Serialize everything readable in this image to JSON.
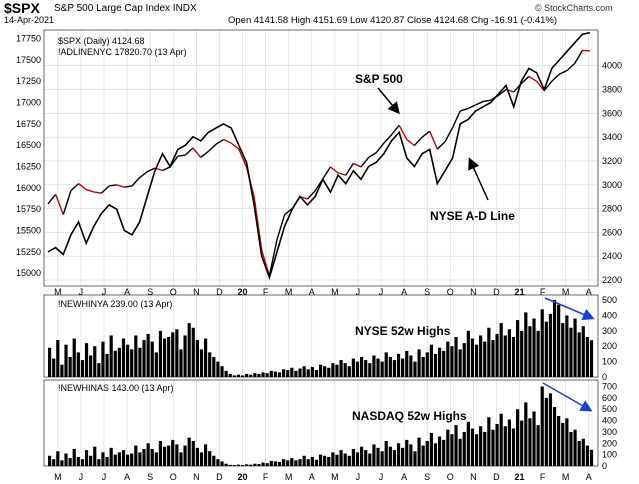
{
  "header": {
    "ticker": "$SPX",
    "index_name": "S&P 500 Large Cap Index",
    "exchange": "INDX",
    "date": "14-Apr-2021",
    "ohlc_text": "Open 4141.58  High 4151.69  Low 4120.87  Close 4124.68  Chg -16.91 (-0.41%)",
    "brand": "© StockCharts.com"
  },
  "legend": {
    "spx": "$SPX (Daily) 4124.68",
    "adline": "!ADLINENYC 17820.70 (13 Apr)",
    "highs_nyse": "!NEWHINYA 239.00 (13 Apr)",
    "highs_nasdaq": "!NEWHINAS 143.00 (13 Apr)"
  },
  "annotations": {
    "spx": "S&P 500",
    "adline": "NYSE A-D Line",
    "nyse_highs": "NYSE 52w Highs",
    "nasdaq_highs": "NASDAQ 52w Highs"
  },
  "colors": {
    "spx_up": "#000000",
    "spx_down": "#cc0000",
    "adline": "#000000",
    "bars": "#000000",
    "arrow": "#1a3fd6",
    "grid": "#d8d8d8"
  },
  "x_axis": {
    "labels": [
      "M",
      "J",
      "J",
      "A",
      "S",
      "O",
      "N",
      "D",
      "20",
      "F",
      "M",
      "A",
      "M",
      "J",
      "J",
      "A",
      "S",
      "O",
      "N",
      "D",
      "21",
      "F",
      "M",
      "A"
    ]
  },
  "chart_data": [
    {
      "type": "line",
      "name": "price-panel",
      "series": [
        {
          "name": "$SPX (Daily) 4124.68",
          "axis": "right",
          "points": [
            [
              0,
              2840
            ],
            [
              1,
              2920
            ],
            [
              2,
              2750
            ],
            [
              3,
              2950
            ],
            [
              4,
              3010
            ],
            [
              5,
              2960
            ],
            [
              6,
              2940
            ],
            [
              7,
              2930
            ],
            [
              8,
              2990
            ],
            [
              9,
              3000
            ],
            [
              10,
              2980
            ],
            [
              11,
              2990
            ],
            [
              12,
              3060
            ],
            [
              13,
              3110
            ],
            [
              14,
              3140
            ],
            [
              15,
              3120
            ],
            [
              16,
              3150
            ],
            [
              17,
              3240
            ],
            [
              18,
              3250
            ],
            [
              19,
              3310
            ],
            [
              20,
              3230
            ],
            [
              21,
              3280
            ],
            [
              22,
              3340
            ],
            [
              23,
              3380
            ],
            [
              24,
              3350
            ],
            [
              25,
              3300
            ],
            [
              26,
              3150
            ],
            [
              27,
              2900
            ],
            [
              28,
              2450
            ],
            [
              29,
              2237
            ],
            [
              30,
              2540
            ],
            [
              31,
              2750
            ],
            [
              32,
              2800
            ],
            [
              33,
              2900
            ],
            [
              34,
              2880
            ],
            [
              35,
              2950
            ],
            [
              36,
              3050
            ],
            [
              37,
              3150
            ],
            [
              38,
              3100
            ],
            [
              39,
              3080
            ],
            [
              40,
              3180
            ],
            [
              41,
              3150
            ],
            [
              42,
              3230
            ],
            [
              43,
              3270
            ],
            [
              44,
              3350
            ],
            [
              45,
              3420
            ],
            [
              46,
              3500
            ],
            [
              47,
              3380
            ],
            [
              48,
              3330
            ],
            [
              49,
              3400
            ],
            [
              50,
              3450
            ],
            [
              51,
              3300
            ],
            [
              52,
              3360
            ],
            [
              53,
              3480
            ],
            [
              54,
              3620
            ],
            [
              55,
              3640
            ],
            [
              56,
              3670
            ],
            [
              57,
              3700
            ],
            [
              58,
              3710
            ],
            [
              59,
              3750
            ],
            [
              60,
              3800
            ],
            [
              61,
              3780
            ],
            [
              62,
              3850
            ],
            [
              63,
              3910
            ],
            [
              64,
              3870
            ],
            [
              65,
              3790
            ],
            [
              66,
              3870
            ],
            [
              67,
              3930
            ],
            [
              68,
              3960
            ],
            [
              69,
              4020
            ],
            [
              70,
              4128
            ],
            [
              71,
              4125
            ]
          ]
        },
        {
          "name": "!ADLINENYC 17820.70 (13 Apr)",
          "axis": "left",
          "points": [
            [
              0,
              15250
            ],
            [
              1,
              15300
            ],
            [
              2,
              15220
            ],
            [
              3,
              15450
            ],
            [
              4,
              15600
            ],
            [
              5,
              15350
            ],
            [
              6,
              15550
            ],
            [
              7,
              15700
            ],
            [
              8,
              15800
            ],
            [
              9,
              15750
            ],
            [
              10,
              15500
            ],
            [
              11,
              15450
            ],
            [
              12,
              15600
            ],
            [
              13,
              15900
            ],
            [
              14,
              16200
            ],
            [
              15,
              16400
            ],
            [
              16,
              16250
            ],
            [
              17,
              16450
            ],
            [
              18,
              16500
            ],
            [
              19,
              16600
            ],
            [
              20,
              16550
            ],
            [
              21,
              16650
            ],
            [
              22,
              16700
            ],
            [
              23,
              16750
            ],
            [
              24,
              16700
            ],
            [
              25,
              16500
            ],
            [
              26,
              16300
            ],
            [
              27,
              15800
            ],
            [
              28,
              15200
            ],
            [
              29,
              14950
            ],
            [
              30,
              15250
            ],
            [
              31,
              15550
            ],
            [
              32,
              15750
            ],
            [
              33,
              15900
            ],
            [
              34,
              15800
            ],
            [
              35,
              15900
            ],
            [
              36,
              16100
            ],
            [
              37,
              15950
            ],
            [
              38,
              16150
            ],
            [
              39,
              16050
            ],
            [
              40,
              16200
            ],
            [
              41,
              16100
            ],
            [
              42,
              16250
            ],
            [
              43,
              16300
            ],
            [
              44,
              16400
            ],
            [
              45,
              16550
            ],
            [
              46,
              16650
            ],
            [
              47,
              16350
            ],
            [
              48,
              16250
            ],
            [
              49,
              16400
            ],
            [
              50,
              16450
            ],
            [
              51,
              16050
            ],
            [
              52,
              16200
            ],
            [
              53,
              16350
            ],
            [
              54,
              16750
            ],
            [
              55,
              16800
            ],
            [
              56,
              16900
            ],
            [
              57,
              16950
            ],
            [
              58,
              17000
            ],
            [
              59,
              17100
            ],
            [
              60,
              17200
            ],
            [
              61,
              16950
            ],
            [
              62,
              17250
            ],
            [
              63,
              17400
            ],
            [
              64,
              17350
            ],
            [
              65,
              17150
            ],
            [
              66,
              17400
            ],
            [
              67,
              17500
            ],
            [
              68,
              17600
            ],
            [
              69,
              17700
            ],
            [
              70,
              17800
            ],
            [
              71,
              17820
            ]
          ]
        }
      ],
      "y_right": {
        "min": 2150,
        "max": 4300,
        "ticks": [
          2200,
          2400,
          2600,
          2800,
          3000,
          3200,
          3400,
          3600,
          3800,
          4000
        ]
      },
      "y_left": {
        "min": 14850,
        "max": 17850,
        "ticks": [
          15000,
          15250,
          15500,
          15750,
          16000,
          16250,
          16500,
          16750,
          17000,
          17250,
          17500,
          17750
        ]
      }
    },
    {
      "type": "bar",
      "name": "!NEWHINYA 239.00 (13 Apr)",
      "ylim": [
        0,
        520
      ],
      "yticks": [
        0,
        100,
        200,
        300,
        400,
        500
      ],
      "values": [
        190,
        120,
        240,
        80,
        210,
        130,
        250,
        160,
        110,
        220,
        140,
        200,
        90,
        230,
        150,
        270,
        170,
        190,
        250,
        210,
        180,
        270,
        190,
        240,
        280,
        230,
        160,
        300,
        250,
        260,
        290,
        310,
        180,
        270,
        350,
        320,
        240,
        180,
        250,
        160,
        130,
        100,
        70,
        40,
        20,
        10,
        15,
        10,
        20,
        15,
        25,
        20,
        30,
        25,
        40,
        35,
        30,
        50,
        45,
        60,
        40,
        55,
        70,
        50,
        65,
        45,
        80,
        70,
        60,
        90,
        80,
        110,
        90,
        70,
        120,
        100,
        130,
        110,
        90,
        140,
        120,
        100,
        160,
        130,
        110,
        150,
        120,
        170,
        140,
        100,
        180,
        130,
        160,
        210,
        150,
        190,
        170,
        230,
        200,
        260,
        180,
        220,
        300,
        250,
        210,
        270,
        230,
        320,
        240,
        280,
        350,
        270,
        310,
        260,
        370,
        300,
        420,
        330,
        380,
        300,
        440,
        360,
        410,
        500,
        470,
        350,
        400,
        320,
        380,
        290,
        330,
        260,
        239
      ]
    },
    {
      "type": "bar",
      "name": "!NEWHINAS 143.00 (13 Apr)",
      "ylim": [
        0,
        740
      ],
      "yticks": [
        0,
        100,
        200,
        300,
        400,
        500,
        600,
        700
      ],
      "values": [
        90,
        60,
        130,
        50,
        110,
        70,
        150,
        80,
        60,
        140,
        90,
        170,
        60,
        120,
        80,
        160,
        100,
        120,
        140,
        100,
        110,
        180,
        120,
        150,
        200,
        150,
        120,
        220,
        170,
        180,
        230,
        190,
        120,
        180,
        250,
        220,
        160,
        120,
        190,
        130,
        90,
        60,
        40,
        20,
        10,
        8,
        12,
        8,
        15,
        12,
        20,
        18,
        30,
        25,
        45,
        40,
        35,
        60,
        50,
        70,
        50,
        60,
        90,
        60,
        80,
        55,
        100,
        90,
        80,
        120,
        100,
        140,
        110,
        90,
        150,
        120,
        170,
        140,
        110,
        190,
        160,
        130,
        220,
        170,
        140,
        200,
        160,
        230,
        190,
        130,
        250,
        180,
        220,
        290,
        200,
        260,
        230,
        320,
        280,
        360,
        240,
        300,
        390,
        330,
        280,
        350,
        300,
        430,
        320,
        370,
        460,
        350,
        410,
        330,
        500,
        400,
        560,
        420,
        480,
        360,
        700,
        600,
        640,
        520,
        440,
        380,
        420,
        300,
        320,
        220,
        240,
        180,
        143
      ]
    }
  ]
}
